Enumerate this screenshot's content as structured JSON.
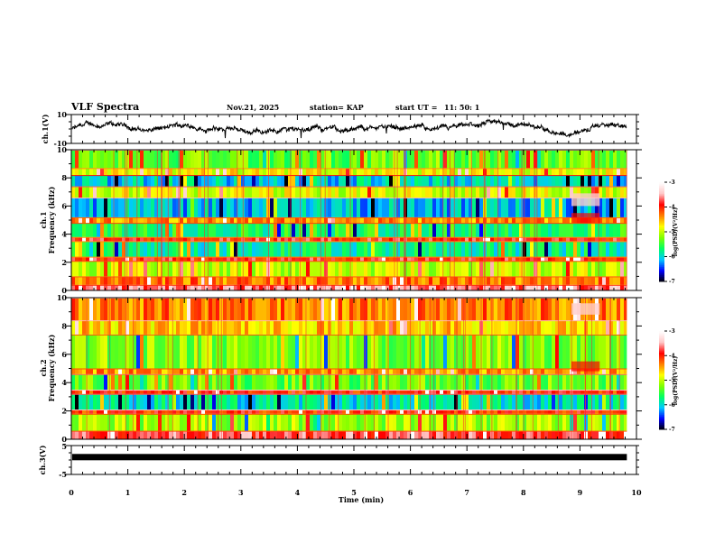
{
  "header": {
    "title": "VLF Spectra",
    "date": "Nov.21, 2025",
    "station": "station= KAP",
    "start_label": "start  UT =",
    "start_time": "11: 50: 1"
  },
  "colors": {
    "trace": "#000000",
    "axis": "#000000",
    "colormap": [
      "#000000",
      "#0000ff",
      "#00c8ff",
      "#00ff64",
      "#7fff00",
      "#ffff00",
      "#ff8000",
      "#ff0000",
      "#ffc8c8",
      "#ffffff"
    ]
  },
  "chart_data": [
    {
      "type": "line",
      "name": "ch1-voltage",
      "ylabel": "ch.1(V)",
      "ylim": [
        -10,
        10
      ],
      "y_tick_labels": [
        "10",
        "-10"
      ],
      "xlim": [
        0,
        10
      ],
      "data_end_min": 9.83,
      "description_values": {
        "mean": 0,
        "amplitude": 4
      }
    },
    {
      "type": "heatmap",
      "name": "ch1-spectrogram",
      "ylabel": "ch.1\nFrequency (kHz)",
      "ylabel_lines": [
        "ch.1",
        "Frequency (kHz)"
      ],
      "ylim": [
        0,
        10
      ],
      "y_tick_labels": [
        "0",
        "2",
        "4",
        "6",
        "8",
        "10"
      ],
      "xlim": [
        0,
        10
      ],
      "colorbar": {
        "label": "log(PSD)(V²/Hz)",
        "range": [
          -7,
          -3
        ],
        "tick_labels": [
          "-3",
          "-4",
          "-5",
          "-6",
          "-7"
        ]
      },
      "bands_khz": [
        {
          "from": 0,
          "to": 0.4,
          "level": -3.6
        },
        {
          "from": 0.4,
          "to": 1.0,
          "level": -4.3
        },
        {
          "from": 1.0,
          "to": 2.1,
          "level": -5.0
        },
        {
          "from": 2.1,
          "to": 2.4,
          "level": -3.9
        },
        {
          "from": 2.4,
          "to": 3.5,
          "level": -5.8
        },
        {
          "from": 3.5,
          "to": 3.8,
          "level": -3.9
        },
        {
          "from": 3.8,
          "to": 4.8,
          "level": -5.6
        },
        {
          "from": 4.8,
          "to": 5.2,
          "level": -4.4
        },
        {
          "from": 5.2,
          "to": 6.6,
          "level": -6.1
        },
        {
          "from": 6.6,
          "to": 7.4,
          "level": -4.9
        },
        {
          "from": 7.4,
          "to": 8.2,
          "level": -6.0
        },
        {
          "from": 8.2,
          "to": 8.7,
          "level": -4.8
        },
        {
          "from": 8.7,
          "to": 10,
          "level": -5.3
        }
      ]
    },
    {
      "type": "heatmap",
      "name": "ch2-spectrogram",
      "ylabel_lines": [
        "ch.2",
        "Frequency (kHz)"
      ],
      "ylim": [
        0,
        10
      ],
      "y_tick_labels": [
        "0",
        "2",
        "4",
        "6",
        "8",
        "10"
      ],
      "xlim": [
        0,
        10
      ],
      "colorbar": {
        "label": "log(PSD)(V²/Hz)",
        "range": [
          -7,
          -3
        ],
        "tick_labels": [
          "-3",
          "-4",
          "-5",
          "-6",
          "-7"
        ]
      },
      "bands_khz": [
        {
          "from": 0,
          "to": 0.6,
          "level": -3.7
        },
        {
          "from": 0.6,
          "to": 1.8,
          "level": -5.1
        },
        {
          "from": 1.8,
          "to": 2.1,
          "level": -4.0
        },
        {
          "from": 2.1,
          "to": 3.2,
          "level": -5.9
        },
        {
          "from": 3.2,
          "to": 3.5,
          "level": -4.0
        },
        {
          "from": 3.5,
          "to": 4.6,
          "level": -5.3
        },
        {
          "from": 4.6,
          "to": 5.0,
          "level": -4.4
        },
        {
          "from": 5.0,
          "to": 7.4,
          "level": -5.2
        },
        {
          "from": 7.4,
          "to": 8.4,
          "level": -4.6
        },
        {
          "from": 8.4,
          "to": 10,
          "level": -4.3
        }
      ]
    },
    {
      "type": "line",
      "name": "ch3-voltage",
      "ylabel": "ch.3(V)",
      "ylim": [
        -5,
        5
      ],
      "y_tick_labels": [
        "5",
        "-5"
      ],
      "xlim": [
        0,
        10
      ],
      "data_end_min": 9.83,
      "description_values": {
        "mean": 1.0,
        "amplitude": 0.3
      }
    }
  ],
  "x_axis": {
    "label": "Time  (min)",
    "tick_labels": [
      "0",
      "1",
      "2",
      "3",
      "4",
      "5",
      "6",
      "7",
      "8",
      "9",
      "10"
    ],
    "range": [
      0,
      10
    ]
  }
}
